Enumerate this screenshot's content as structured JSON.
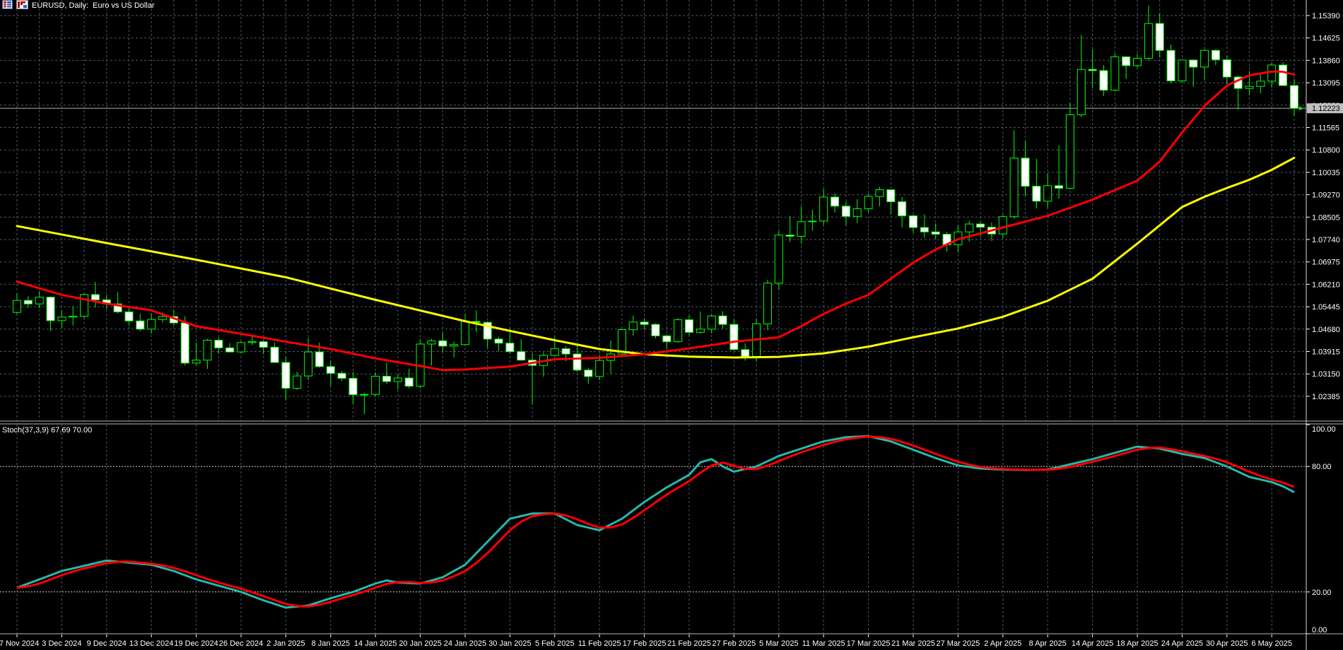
{
  "window": {
    "title": "EURUSD, Daily:  Euro vs US Dollar",
    "icons": [
      "quotes-table-icon",
      "bar-chart-icon"
    ]
  },
  "price_axis": {
    "ticks": [
      "1.15390",
      "1.14625",
      "1.13860",
      "1.13095",
      "1.12330",
      "1.11565",
      "1.10800",
      "1.10035",
      "1.09270",
      "1.08505",
      "1.07740",
      "1.06975",
      "1.06210",
      "1.05445",
      "1.04680",
      "1.03915",
      "1.03150",
      "1.02385"
    ],
    "current_price": "1.12223",
    "current_price_value": 1.12223
  },
  "time_axis": {
    "labels": [
      "27 Nov 2024",
      "3 Dec 2024",
      "9 Dec 2024",
      "13 Dec 2024",
      "19 Dec 2024",
      "26 Dec 2024",
      "2 Jan 2025",
      "8 Jan 2025",
      "14 Jan 2025",
      "20 Jan 2025",
      "24 Jan 2025",
      "30 Jan 2025",
      "5 Feb 2025",
      "11 Feb 2025",
      "17 Feb 2025",
      "21 Feb 2025",
      "27 Feb 2025",
      "5 Mar 2025",
      "11 Mar 2025",
      "17 Mar 2025",
      "21 Mar 2025",
      "27 Mar 2025",
      "2 Apr 2025",
      "8 Apr 2025",
      "14 Apr 2025",
      "18 Apr 2025",
      "24 Apr 2025",
      "30 Apr 2025",
      "6 May 2025"
    ],
    "label_every": 4
  },
  "indicator": {
    "label": "Stoch(37,3,9) 67.69 70.00",
    "ticks": [
      "100.00",
      "80.00",
      "20.00",
      "0.00"
    ],
    "tick_values": [
      100,
      80,
      20,
      0
    ],
    "levels": [
      80,
      20
    ],
    "current_k": 67.69,
    "current_d": 70.0
  },
  "chart_data": {
    "type": "candlestick",
    "symbol": "EURUSD",
    "timeframe": "Daily",
    "title": "EURUSD, Daily:  Euro vs US Dollar",
    "ylim": [
      1.0178,
      1.1573
    ],
    "grid": true,
    "candles": [
      [
        1.0525,
        1.059,
        1.0518,
        1.0566
      ],
      [
        1.0566,
        1.058,
        1.0541,
        1.0554
      ],
      [
        1.0554,
        1.0598,
        1.054,
        1.0577
      ],
      [
        1.0577,
        1.058,
        1.0461,
        1.0497
      ],
      [
        1.0497,
        1.0531,
        1.0472,
        1.0509
      ],
      [
        1.0509,
        1.0544,
        1.048,
        1.0512
      ],
      [
        1.0512,
        1.059,
        1.0505,
        1.0586
      ],
      [
        1.0586,
        1.0629,
        1.0542,
        1.0568
      ],
      [
        1.0568,
        1.0585,
        1.0536,
        1.0554
      ],
      [
        1.0554,
        1.0594,
        1.0521,
        1.0527
      ],
      [
        1.0527,
        1.054,
        1.048,
        1.0496
      ],
      [
        1.0496,
        1.052,
        1.0461,
        1.0468
      ],
      [
        1.0468,
        1.0522,
        1.0452,
        1.0501
      ],
      [
        1.0501,
        1.0525,
        1.049,
        1.0511
      ],
      [
        1.0511,
        1.0535,
        1.048,
        1.0489
      ],
      [
        1.0489,
        1.0512,
        1.0344,
        1.0352
      ],
      [
        1.0352,
        1.0422,
        1.0343,
        1.0362
      ],
      [
        1.0362,
        1.0435,
        1.0332,
        1.043
      ],
      [
        1.043,
        1.044,
        1.0384,
        1.0404
      ],
      [
        1.0404,
        1.042,
        1.0389,
        1.039
      ],
      [
        1.039,
        1.0428,
        1.0385,
        1.0422
      ],
      [
        1.0422,
        1.0445,
        1.0413,
        1.0425
      ],
      [
        1.0425,
        1.043,
        1.0382,
        1.0406
      ],
      [
        1.0406,
        1.0422,
        1.0352,
        1.0354
      ],
      [
        1.0354,
        1.0374,
        1.0226,
        1.0266
      ],
      [
        1.0266,
        1.0322,
        1.026,
        1.0308
      ],
      [
        1.0308,
        1.0437,
        1.0294,
        1.039
      ],
      [
        1.039,
        1.0422,
        1.0336,
        1.034
      ],
      [
        1.034,
        1.036,
        1.0273,
        1.0317
      ],
      [
        1.0317,
        1.0325,
        1.029,
        1.03
      ],
      [
        1.03,
        1.0322,
        1.0213,
        1.0244
      ],
      [
        1.0244,
        1.025,
        1.0178,
        1.0245
      ],
      [
        1.0245,
        1.032,
        1.0238,
        1.0307
      ],
      [
        1.0307,
        1.0354,
        1.028,
        1.0289
      ],
      [
        1.0289,
        1.0313,
        1.0262,
        1.0301
      ],
      [
        1.0301,
        1.0332,
        1.0266,
        1.0273
      ],
      [
        1.0273,
        1.0434,
        1.0265,
        1.0417
      ],
      [
        1.0417,
        1.0435,
        1.0343,
        1.0428
      ],
      [
        1.0428,
        1.0457,
        1.039,
        1.041
      ],
      [
        1.041,
        1.0425,
        1.0371,
        1.0415
      ],
      [
        1.0415,
        1.0521,
        1.041,
        1.0494
      ],
      [
        1.0494,
        1.0532,
        1.0458,
        1.0491
      ],
      [
        1.0491,
        1.0495,
        1.0404,
        1.0434
      ],
      [
        1.0434,
        1.0442,
        1.0392,
        1.042
      ],
      [
        1.042,
        1.0468,
        1.0383,
        1.0391
      ],
      [
        1.0391,
        1.0433,
        1.036,
        1.0362
      ],
      [
        1.0362,
        1.0385,
        1.0211,
        1.0344
      ],
      [
        1.0344,
        1.0389,
        1.0305,
        1.0378
      ],
      [
        1.0378,
        1.0442,
        1.0376,
        1.0401
      ],
      [
        1.0401,
        1.041,
        1.0359,
        1.0383
      ],
      [
        1.0383,
        1.042,
        1.0321,
        1.0328
      ],
      [
        1.0328,
        1.0336,
        1.028,
        1.0306
      ],
      [
        1.0306,
        1.038,
        1.0293,
        1.0361
      ],
      [
        1.0361,
        1.0429,
        1.0316,
        1.0383
      ],
      [
        1.0383,
        1.047,
        1.0375,
        1.0466
      ],
      [
        1.0466,
        1.0514,
        1.0445,
        1.0492
      ],
      [
        1.0492,
        1.0506,
        1.0466,
        1.0484
      ],
      [
        1.0484,
        1.0488,
        1.0436,
        1.0445
      ],
      [
        1.0445,
        1.045,
        1.0401,
        1.0425
      ],
      [
        1.0425,
        1.0506,
        1.0421,
        1.05
      ],
      [
        1.05,
        1.0516,
        1.0445,
        1.0457
      ],
      [
        1.0457,
        1.0528,
        1.0452,
        1.0468
      ],
      [
        1.0468,
        1.0518,
        1.0453,
        1.0513
      ],
      [
        1.0513,
        1.0529,
        1.047,
        1.0484
      ],
      [
        1.0484,
        1.05,
        1.0395,
        1.0398
      ],
      [
        1.0398,
        1.042,
        1.036,
        1.0375
      ],
      [
        1.0375,
        1.0504,
        1.0359,
        1.0486
      ],
      [
        1.0486,
        1.0637,
        1.0465,
        1.0625
      ],
      [
        1.0625,
        1.0803,
        1.0602,
        1.0789
      ],
      [
        1.0789,
        1.0854,
        1.0766,
        1.0785
      ],
      [
        1.0785,
        1.0888,
        1.0761,
        1.0835
      ],
      [
        1.0835,
        1.0876,
        1.0804,
        1.0837
      ],
      [
        1.0837,
        1.0947,
        1.0823,
        1.0919
      ],
      [
        1.0919,
        1.0932,
        1.0866,
        1.0888
      ],
      [
        1.0888,
        1.0903,
        1.0822,
        1.0853
      ],
      [
        1.0853,
        1.0912,
        1.083,
        1.0879
      ],
      [
        1.0879,
        1.093,
        1.0868,
        1.0921
      ],
      [
        1.0921,
        1.0954,
        1.0888,
        1.0944
      ],
      [
        1.0944,
        1.0946,
        1.086,
        1.0903
      ],
      [
        1.0903,
        1.0919,
        1.0815,
        1.0855
      ],
      [
        1.0855,
        1.086,
        1.0796,
        1.0815
      ],
      [
        1.0815,
        1.086,
        1.078,
        1.08
      ],
      [
        1.08,
        1.0829,
        1.0777,
        1.0792
      ],
      [
        1.0792,
        1.08,
        1.0733,
        1.0756
      ],
      [
        1.0756,
        1.0823,
        1.0732,
        1.08
      ],
      [
        1.08,
        1.0838,
        1.0767,
        1.0827
      ],
      [
        1.0827,
        1.0835,
        1.0783,
        1.0816
      ],
      [
        1.0816,
        1.0832,
        1.0769,
        1.0793
      ],
      [
        1.0793,
        1.086,
        1.078,
        1.0852
      ],
      [
        1.0852,
        1.1147,
        1.0845,
        1.1052
      ],
      [
        1.1052,
        1.1109,
        1.0922,
        1.0956
      ],
      [
        1.0956,
        1.105,
        1.088,
        1.0905
      ],
      [
        1.0905,
        1.1,
        1.0882,
        1.0958
      ],
      [
        1.0958,
        1.1095,
        1.0913,
        1.0949
      ],
      [
        1.0949,
        1.1241,
        1.0945,
        1.12
      ],
      [
        1.12,
        1.1473,
        1.1192,
        1.1355
      ],
      [
        1.1355,
        1.1424,
        1.129,
        1.1351
      ],
      [
        1.1351,
        1.137,
        1.1264,
        1.1284
      ],
      [
        1.1284,
        1.141,
        1.128,
        1.1398
      ],
      [
        1.1398,
        1.14,
        1.1323,
        1.1368
      ],
      [
        1.1368,
        1.141,
        1.136,
        1.1393
      ],
      [
        1.1393,
        1.1573,
        1.1385,
        1.1512
      ],
      [
        1.1512,
        1.1547,
        1.1396,
        1.142
      ],
      [
        1.142,
        1.144,
        1.1307,
        1.1316
      ],
      [
        1.1316,
        1.1388,
        1.1308,
        1.1387
      ],
      [
        1.1387,
        1.139,
        1.1296,
        1.1363
      ],
      [
        1.1363,
        1.1425,
        1.1319,
        1.142
      ],
      [
        1.142,
        1.1424,
        1.137,
        1.1388
      ],
      [
        1.1388,
        1.1402,
        1.1305,
        1.1329
      ],
      [
        1.1329,
        1.1334,
        1.1218,
        1.129
      ],
      [
        1.129,
        1.135,
        1.1266,
        1.1297
      ],
      [
        1.1297,
        1.134,
        1.1274,
        1.1315
      ],
      [
        1.1315,
        1.1379,
        1.1293,
        1.137
      ],
      [
        1.137,
        1.138,
        1.1298,
        1.13
      ],
      [
        1.13,
        1.1322,
        1.1197,
        1.12223
      ]
    ],
    "overlays": [
      {
        "name": "ma-slow",
        "color": "#FFFF00",
        "points": [
          [
            0,
            1.082
          ],
          [
            8,
            1.0762
          ],
          [
            16,
            1.0705
          ],
          [
            24,
            1.0645
          ],
          [
            32,
            1.0568
          ],
          [
            40,
            1.0495
          ],
          [
            44,
            1.0462
          ],
          [
            48,
            1.043
          ],
          [
            52,
            1.04
          ],
          [
            56,
            1.0382
          ],
          [
            60,
            1.0374
          ],
          [
            64,
            1.0371
          ],
          [
            68,
            1.0373
          ],
          [
            72,
            1.0385
          ],
          [
            76,
            1.0408
          ],
          [
            80,
            1.044
          ],
          [
            84,
            1.047
          ],
          [
            88,
            1.051
          ],
          [
            92,
            1.0565
          ],
          [
            96,
            1.064
          ],
          [
            100,
            1.076
          ],
          [
            104,
            1.0885
          ],
          [
            106,
            1.092
          ],
          [
            108,
            1.095
          ],
          [
            110,
            1.0978
          ],
          [
            112,
            1.1012
          ],
          [
            114,
            1.1053
          ]
        ]
      },
      {
        "name": "ma-fast",
        "color": "#FF0000",
        "points": [
          [
            0,
            1.063
          ],
          [
            4,
            1.0585
          ],
          [
            8,
            1.0555
          ],
          [
            12,
            1.0532
          ],
          [
            16,
            1.0478
          ],
          [
            20,
            1.0452
          ],
          [
            24,
            1.0425
          ],
          [
            28,
            1.04
          ],
          [
            32,
            1.0368
          ],
          [
            36,
            1.0342
          ],
          [
            38,
            1.0328
          ],
          [
            40,
            1.033
          ],
          [
            44,
            1.034
          ],
          [
            48,
            1.0365
          ],
          [
            52,
            1.037
          ],
          [
            56,
            1.0382
          ],
          [
            60,
            1.0402
          ],
          [
            64,
            1.0425
          ],
          [
            68,
            1.044
          ],
          [
            70,
            1.0478
          ],
          [
            72,
            1.052
          ],
          [
            74,
            1.0555
          ],
          [
            76,
            1.0585
          ],
          [
            78,
            1.064
          ],
          [
            80,
            1.0695
          ],
          [
            82,
            1.074
          ],
          [
            84,
            1.0775
          ],
          [
            88,
            1.0815
          ],
          [
            92,
            1.0855
          ],
          [
            96,
            1.091
          ],
          [
            100,
            1.0975
          ],
          [
            102,
            1.104
          ],
          [
            104,
            1.114
          ],
          [
            106,
            1.123
          ],
          [
            108,
            1.13
          ],
          [
            110,
            1.1335
          ],
          [
            112,
            1.1348
          ],
          [
            113,
            1.1347
          ],
          [
            114,
            1.1337
          ]
        ]
      }
    ],
    "stochastic": {
      "k_color": "#26B8AB",
      "d_color": "#FF0000",
      "k_points": [
        [
          0,
          22
        ],
        [
          2,
          26
        ],
        [
          4,
          30
        ],
        [
          8,
          35
        ],
        [
          12,
          33
        ],
        [
          14,
          30
        ],
        [
          16,
          26
        ],
        [
          20,
          20
        ],
        [
          22,
          16
        ],
        [
          24,
          12.5
        ],
        [
          26,
          13.5
        ],
        [
          28,
          17
        ],
        [
          30,
          20
        ],
        [
          32,
          24
        ],
        [
          33,
          25.5
        ],
        [
          34,
          24.5
        ],
        [
          36,
          24
        ],
        [
          38,
          27
        ],
        [
          40,
          33
        ],
        [
          42,
          44
        ],
        [
          44,
          55
        ],
        [
          46,
          57.5
        ],
        [
          48,
          57.5
        ],
        [
          50,
          52
        ],
        [
          52,
          49.5
        ],
        [
          54,
          55
        ],
        [
          56,
          63
        ],
        [
          58,
          70
        ],
        [
          60,
          76
        ],
        [
          61,
          82
        ],
        [
          62,
          83.5
        ],
        [
          63,
          80
        ],
        [
          64,
          77.5
        ],
        [
          66,
          80
        ],
        [
          68,
          85
        ],
        [
          70,
          88.5
        ],
        [
          72,
          92
        ],
        [
          74,
          94
        ],
        [
          76,
          94.5
        ],
        [
          78,
          92
        ],
        [
          80,
          88
        ],
        [
          82,
          84
        ],
        [
          84,
          80.5
        ],
        [
          86,
          79
        ],
        [
          88,
          78.5
        ],
        [
          90,
          78.3
        ],
        [
          92,
          78.5
        ],
        [
          94,
          81
        ],
        [
          96,
          83.5
        ],
        [
          98,
          86.5
        ],
        [
          100,
          89.5
        ],
        [
          102,
          88.5
        ],
        [
          104,
          86
        ],
        [
          106,
          84
        ],
        [
          108,
          80
        ],
        [
          110,
          75
        ],
        [
          112,
          72.5
        ],
        [
          113,
          70.5
        ],
        [
          114,
          67.69
        ]
      ]
    },
    "colors": {
      "background": "#000000",
      "candle_outline": "#00FF00",
      "bull_fill": "#000000",
      "bear_fill": "#FFFFFF",
      "grid": "#4E5A66",
      "level_line": "#CFCFCF",
      "bid_line": "#A4B0B8",
      "price_tag_bg": "#C0C0C0",
      "price_tag_text": "#000000",
      "axis_text": "#FFFFFF",
      "axis_line": "#D8D8D8",
      "separator": "#B8B8B8"
    }
  }
}
